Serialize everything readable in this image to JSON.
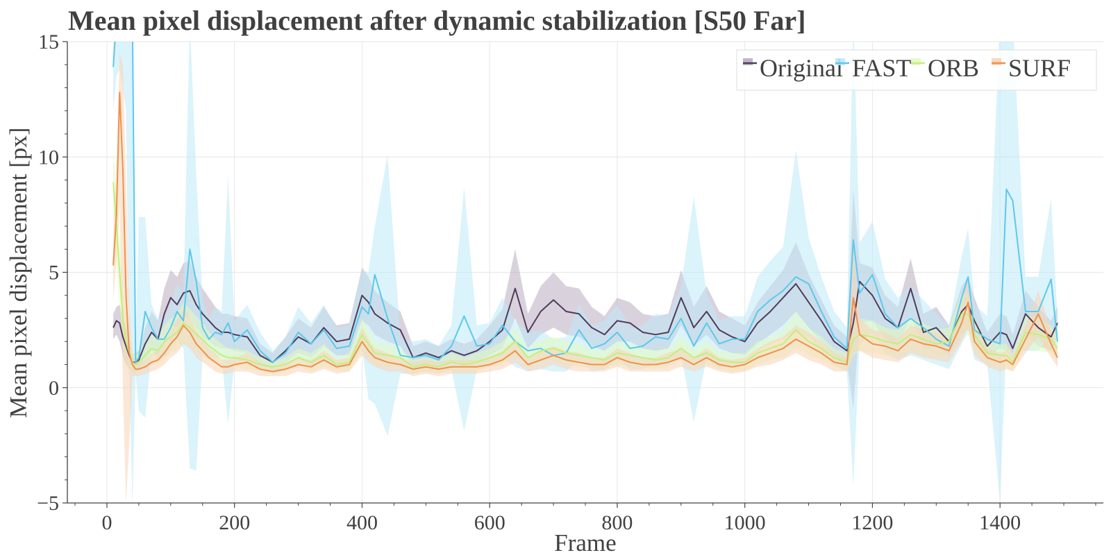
{
  "chart_data": {
    "type": "line",
    "title": "Mean pixel displacement after dynamic stabilization [S50 Far]",
    "xlabel": "Frame",
    "ylabel": "Mean pixel displacement [px]",
    "xlim": [
      -62,
      1562
    ],
    "ylim": [
      -5,
      15
    ],
    "xticks": [
      0,
      200,
      400,
      600,
      800,
      1000,
      1200,
      1400
    ],
    "yticks": [
      -5,
      0,
      5,
      10,
      15
    ],
    "x_tick_labels": [
      "0",
      "200",
      "400",
      "600",
      "800",
      "1000",
      "1200",
      "1400"
    ],
    "y_tick_labels": [
      "−5",
      "0",
      "5",
      "10",
      "15"
    ],
    "grid": true,
    "legend_position": "top-right",
    "x": [
      10,
      15,
      20,
      25,
      30,
      35,
      40,
      45,
      50,
      60,
      70,
      80,
      90,
      100,
      110,
      120,
      130,
      140,
      150,
      160,
      170,
      180,
      190,
      200,
      220,
      240,
      260,
      280,
      300,
      320,
      340,
      360,
      380,
      400,
      410,
      420,
      440,
      460,
      480,
      500,
      520,
      540,
      560,
      580,
      600,
      620,
      640,
      660,
      680,
      700,
      720,
      740,
      760,
      780,
      800,
      820,
      840,
      860,
      880,
      900,
      920,
      940,
      960,
      980,
      1000,
      1020,
      1040,
      1060,
      1080,
      1100,
      1120,
      1140,
      1160,
      1170,
      1180,
      1200,
      1220,
      1240,
      1260,
      1280,
      1300,
      1320,
      1340,
      1350,
      1360,
      1380,
      1400,
      1410,
      1420,
      1440,
      1460,
      1480,
      1490
    ],
    "series": [
      {
        "name": "Original",
        "color": "#4f3b5c",
        "band_color": "#b9adbf",
        "values": [
          2.6,
          2.9,
          2.8,
          2.2,
          1.8,
          1.4,
          1.1,
          1.1,
          1.2,
          1.9,
          2.4,
          2.1,
          3.2,
          3.9,
          3.6,
          4.1,
          4.2,
          3.6,
          3.2,
          2.9,
          2.6,
          2.4,
          2.4,
          2.3,
          2.2,
          1.4,
          1.1,
          1.6,
          2.2,
          1.9,
          2.6,
          2.0,
          2.1,
          4.0,
          3.7,
          3.2,
          2.8,
          2.5,
          1.3,
          1.5,
          1.3,
          1.6,
          1.4,
          1.6,
          2.0,
          2.5,
          4.3,
          2.4,
          3.3,
          3.8,
          3.3,
          3.2,
          2.6,
          2.3,
          2.9,
          2.8,
          2.4,
          2.3,
          2.4,
          3.9,
          2.6,
          3.3,
          2.5,
          2.2,
          2.0,
          2.8,
          3.3,
          3.9,
          4.5,
          3.7,
          2.9,
          2.0,
          1.6,
          2.8,
          4.6,
          4.0,
          3.0,
          2.6,
          4.3,
          2.4,
          2.6,
          2.0,
          3.3,
          3.6,
          2.9,
          1.8,
          2.4,
          2.3,
          1.7,
          3.2,
          2.6,
          2.2,
          2.8
        ],
        "lower": [
          2.1,
          2.3,
          2.0,
          1.4,
          1.0,
          0.8,
          0.7,
          0.7,
          0.8,
          1.2,
          1.6,
          1.4,
          2.2,
          2.7,
          2.6,
          3.0,
          3.1,
          2.6,
          2.2,
          2.0,
          1.8,
          1.7,
          1.7,
          1.6,
          1.5,
          1.0,
          0.8,
          1.1,
          1.5,
          1.3,
          1.8,
          1.4,
          1.4,
          2.9,
          2.7,
          2.3,
          2.0,
          1.8,
          0.9,
          1.0,
          0.9,
          1.1,
          1.0,
          1.1,
          1.4,
          1.7,
          3.0,
          1.7,
          2.3,
          2.6,
          2.3,
          2.2,
          1.8,
          1.6,
          2.0,
          2.0,
          1.7,
          1.6,
          1.7,
          2.7,
          1.8,
          2.3,
          1.7,
          1.5,
          1.4,
          1.9,
          2.3,
          2.7,
          3.3,
          2.6,
          2.0,
          1.4,
          1.1,
          -0.9,
          2.8,
          2.9,
          2.1,
          1.8,
          3.1,
          1.7,
          1.8,
          1.4,
          2.3,
          2.5,
          2.0,
          1.3,
          1.7,
          1.6,
          1.2,
          2.3,
          1.8,
          1.6,
          2.2
        ],
        "upper": [
          3.2,
          3.5,
          3.6,
          3.0,
          2.6,
          2.0,
          1.5,
          1.5,
          1.6,
          2.6,
          3.3,
          2.9,
          4.3,
          5.1,
          4.8,
          5.4,
          5.5,
          4.8,
          4.3,
          3.9,
          3.5,
          3.2,
          3.2,
          3.1,
          3.0,
          1.9,
          1.5,
          2.2,
          3.0,
          2.6,
          3.5,
          2.7,
          2.8,
          5.2,
          4.8,
          4.2,
          3.7,
          3.3,
          1.8,
          2.0,
          1.8,
          2.1,
          1.9,
          2.1,
          2.7,
          3.4,
          6.0,
          3.2,
          4.4,
          5.0,
          4.4,
          4.3,
          3.5,
          3.1,
          3.9,
          3.7,
          3.2,
          3.1,
          3.2,
          5.1,
          3.5,
          4.4,
          3.3,
          3.0,
          2.7,
          3.7,
          4.4,
          5.1,
          6.3,
          4.9,
          3.8,
          2.7,
          2.2,
          8.6,
          5.4,
          5.2,
          4.0,
          3.5,
          5.6,
          3.2,
          3.5,
          2.7,
          4.4,
          4.8,
          3.9,
          2.4,
          3.2,
          3.1,
          2.3,
          4.2,
          3.5,
          2.9,
          3.5
        ]
      },
      {
        "name": "FAST",
        "color": "#5bc8ec",
        "band_color": "#bde9f8",
        "values": [
          13.9,
          16,
          16,
          16,
          16,
          16,
          16,
          1.1,
          1.3,
          3.3,
          2.6,
          2.1,
          2.1,
          2.6,
          3.3,
          2.9,
          6.0,
          4.6,
          2.6,
          2.1,
          2.4,
          2.3,
          2.8,
          2.0,
          2.5,
          1.6,
          1.1,
          1.5,
          2.4,
          1.9,
          2.5,
          1.7,
          1.8,
          3.5,
          3.2,
          4.9,
          3.0,
          1.4,
          1.3,
          1.4,
          1.2,
          1.8,
          3.1,
          1.8,
          1.9,
          2.7,
          2.0,
          1.6,
          1.7,
          1.4,
          1.5,
          2.5,
          1.7,
          1.9,
          2.4,
          1.7,
          1.8,
          2.2,
          2.1,
          3.0,
          1.8,
          2.8,
          1.9,
          2.1,
          2.1,
          3.3,
          3.8,
          4.2,
          4.8,
          4.5,
          3.3,
          2.2,
          1.7,
          6.4,
          4.1,
          4.9,
          3.2,
          2.6,
          3.0,
          2.6,
          2.1,
          1.8,
          3.9,
          4.8,
          2.5,
          2.1,
          1.9,
          8.6,
          8.1,
          3.3,
          3.3,
          4.7,
          2.0
        ],
        "lower": [
          12.0,
          13.5,
          13.8,
          13.0,
          12.0,
          0.8,
          -5.2,
          0.6,
          -1.0,
          -1.3,
          1.6,
          1.2,
          1.3,
          1.6,
          2.1,
          1.7,
          -3.5,
          -3.6,
          1.4,
          1.2,
          1.3,
          1.3,
          -1.6,
          1.1,
          1.2,
          0.8,
          0.6,
          0.8,
          1.3,
          0.9,
          1.2,
          0.8,
          0.9,
          1.8,
          -0.5,
          -0.7,
          -2.1,
          0.6,
          0.6,
          0.7,
          0.6,
          0.8,
          -1.9,
          0.8,
          0.9,
          1.3,
          0.9,
          0.7,
          0.8,
          0.7,
          0.7,
          1.2,
          0.7,
          0.8,
          1.2,
          0.8,
          0.8,
          1.0,
          1.0,
          1.4,
          -1.5,
          1.3,
          0.8,
          1.0,
          1.0,
          1.6,
          1.9,
          2.1,
          2.4,
          2.2,
          1.6,
          1.0,
          0.7,
          -4.3,
          1.9,
          2.4,
          1.5,
          1.2,
          1.4,
          1.2,
          1.0,
          0.8,
          1.9,
          2.4,
          1.2,
          1.0,
          -5.0,
          2.0,
          1.6,
          1.6,
          1.6,
          2.3,
          0.9
        ],
        "upper": [
          16,
          16,
          16,
          16,
          16,
          16,
          16,
          1.6,
          7.4,
          7.4,
          3.6,
          3.0,
          3.0,
          3.6,
          4.5,
          4.1,
          16,
          9.2,
          3.8,
          3.0,
          3.5,
          3.3,
          9.2,
          2.9,
          3.6,
          2.4,
          1.6,
          2.2,
          3.5,
          2.8,
          3.6,
          2.6,
          2.7,
          5.1,
          5.0,
          7.0,
          10.1,
          2.2,
          2.0,
          2.1,
          1.8,
          2.7,
          8.7,
          2.7,
          2.8,
          3.9,
          2.9,
          2.4,
          2.5,
          2.1,
          2.2,
          3.6,
          2.7,
          2.9,
          3.6,
          2.6,
          2.7,
          3.2,
          3.1,
          4.4,
          8.3,
          4.1,
          2.9,
          3.1,
          3.1,
          4.8,
          5.5,
          6.1,
          10.3,
          6.5,
          4.8,
          3.3,
          2.6,
          16,
          6.3,
          7.2,
          4.7,
          3.9,
          4.4,
          3.8,
          3.2,
          2.7,
          5.7,
          6.9,
          3.6,
          3.1,
          16,
          16,
          16,
          4.8,
          4.8,
          8.2,
          3.1
        ]
      },
      {
        "name": "ORB",
        "color": "#c2f07a",
        "band_color": "#e2f9c0",
        "values": [
          8.9,
          7.0,
          5.0,
          3.0,
          2.0,
          1.5,
          1.1,
          1.0,
          1.1,
          1.4,
          1.7,
          1.6,
          2.0,
          2.2,
          2.4,
          2.8,
          2.6,
          2.3,
          2.1,
          1.8,
          1.6,
          1.4,
          1.3,
          1.3,
          1.2,
          1.0,
          0.9,
          1.0,
          1.3,
          1.1,
          1.4,
          1.0,
          1.1,
          2.3,
          1.9,
          1.5,
          1.4,
          1.3,
          0.9,
          1.0,
          0.9,
          1.1,
          1.0,
          1.1,
          1.3,
          1.5,
          2.0,
          1.3,
          1.6,
          1.7,
          1.5,
          1.4,
          1.3,
          1.2,
          1.5,
          1.4,
          1.3,
          1.2,
          1.3,
          1.7,
          1.3,
          1.5,
          1.2,
          1.1,
          1.1,
          1.5,
          1.7,
          1.9,
          2.5,
          2.0,
          1.7,
          1.3,
          1.1,
          2.1,
          2.3,
          2.2,
          2.0,
          1.9,
          2.3,
          2.1,
          1.9,
          2.0,
          3.2,
          3.2,
          2.3,
          1.5,
          1.4,
          1.4,
          1.1,
          2.4,
          2.3,
          2.1,
          1.7
        ],
        "lower": [
          7.5,
          5.5,
          3.6,
          1.8,
          1.0,
          0.8,
          0.6,
          0.6,
          0.7,
          0.9,
          1.1,
          1.0,
          1.3,
          1.5,
          1.6,
          1.9,
          1.8,
          1.6,
          1.4,
          1.2,
          1.1,
          0.9,
          0.9,
          0.9,
          0.8,
          0.7,
          0.6,
          0.7,
          0.9,
          0.7,
          0.9,
          0.7,
          0.7,
          1.6,
          1.3,
          1.0,
          0.9,
          0.9,
          0.6,
          0.7,
          0.6,
          0.7,
          0.7,
          0.7,
          0.9,
          1.0,
          1.4,
          0.9,
          1.1,
          1.2,
          1.0,
          0.9,
          0.9,
          0.8,
          1.0,
          0.9,
          0.9,
          0.8,
          0.9,
          1.2,
          0.9,
          1.0,
          0.8,
          0.7,
          0.7,
          1.0,
          1.2,
          1.3,
          1.7,
          1.4,
          1.2,
          0.9,
          0.7,
          1.4,
          1.6,
          1.5,
          1.4,
          1.3,
          1.6,
          1.4,
          1.3,
          1.4,
          2.3,
          2.3,
          1.6,
          1.0,
          0.9,
          0.9,
          0.7,
          1.7,
          1.6,
          1.5,
          1.2
        ],
        "upper": [
          10.3,
          8.5,
          6.5,
          4.3,
          3.0,
          2.2,
          1.6,
          1.4,
          1.5,
          1.9,
          2.3,
          2.2,
          2.7,
          3.0,
          3.2,
          3.7,
          3.4,
          3.1,
          2.8,
          2.4,
          2.1,
          1.9,
          1.7,
          1.7,
          1.6,
          1.3,
          1.2,
          1.3,
          1.7,
          1.5,
          1.9,
          1.3,
          1.5,
          3.0,
          2.5,
          2.0,
          1.9,
          1.7,
          1.2,
          1.3,
          1.2,
          1.5,
          1.3,
          1.5,
          1.7,
          2.0,
          2.6,
          1.7,
          2.1,
          2.2,
          2.0,
          1.9,
          1.7,
          1.6,
          2.0,
          1.9,
          1.7,
          1.6,
          1.7,
          2.2,
          1.7,
          2.0,
          1.6,
          1.5,
          1.5,
          2.0,
          2.2,
          2.5,
          3.3,
          2.6,
          2.2,
          1.7,
          1.5,
          2.8,
          3.0,
          2.9,
          2.6,
          2.5,
          3.0,
          2.8,
          2.5,
          2.6,
          4.1,
          4.1,
          3.0,
          2.0,
          1.9,
          1.9,
          1.5,
          3.1,
          3.0,
          2.7,
          2.2
        ]
      },
      {
        "name": "SURF",
        "color": "#f0904a",
        "band_color": "#fad3b6",
        "values": [
          5.3,
          7.5,
          12.8,
          9.5,
          4.0,
          1.5,
          1.0,
          0.8,
          0.8,
          0.9,
          1.1,
          1.2,
          1.5,
          1.9,
          2.2,
          2.7,
          2.4,
          1.9,
          1.6,
          1.3,
          1.1,
          0.9,
          0.9,
          1.0,
          1.1,
          0.8,
          0.7,
          0.8,
          1.0,
          0.9,
          1.2,
          0.9,
          1.0,
          2.0,
          1.6,
          1.3,
          1.1,
          1.0,
          0.8,
          0.9,
          0.8,
          0.9,
          0.9,
          0.9,
          1.0,
          1.2,
          1.6,
          1.0,
          1.2,
          1.4,
          1.2,
          1.1,
          1.0,
          1.0,
          1.3,
          1.1,
          1.0,
          1.0,
          1.1,
          1.3,
          1.0,
          1.3,
          1.0,
          0.9,
          1.0,
          1.3,
          1.5,
          1.7,
          2.1,
          1.8,
          1.5,
          1.1,
          1.0,
          3.9,
          2.3,
          1.9,
          1.8,
          1.6,
          2.1,
          1.9,
          1.8,
          1.6,
          2.8,
          3.7,
          2.0,
          1.3,
          1.1,
          1.2,
          1.0,
          2.1,
          3.2,
          1.9,
          1.3
        ],
        "lower": [
          3.8,
          5.5,
          8.0,
          0.0,
          -5.0,
          -2.5,
          0.5,
          0.5,
          0.5,
          0.6,
          0.7,
          0.8,
          1.0,
          1.3,
          1.5,
          1.9,
          1.7,
          1.3,
          1.1,
          0.9,
          0.7,
          0.6,
          0.6,
          0.7,
          0.7,
          0.5,
          0.5,
          0.5,
          0.7,
          0.6,
          0.8,
          0.6,
          0.7,
          1.4,
          1.1,
          0.9,
          0.7,
          0.7,
          0.5,
          0.6,
          0.5,
          0.6,
          0.6,
          0.6,
          0.7,
          0.8,
          1.1,
          0.7,
          0.8,
          1.0,
          0.8,
          0.7,
          0.7,
          0.7,
          0.9,
          0.7,
          0.7,
          0.7,
          0.7,
          0.9,
          0.7,
          0.9,
          0.7,
          0.6,
          0.7,
          0.9,
          1.0,
          1.2,
          1.5,
          1.2,
          1.0,
          0.7,
          0.7,
          1.5,
          1.6,
          1.3,
          1.2,
          1.1,
          1.5,
          1.3,
          1.2,
          1.1,
          2.0,
          2.6,
          1.4,
          0.9,
          0.7,
          0.8,
          0.7,
          1.5,
          2.2,
          1.3,
          0.9
        ],
        "upper": [
          6.8,
          9.5,
          14.5,
          14.0,
          9.0,
          3.5,
          1.5,
          1.1,
          1.1,
          1.2,
          1.5,
          1.6,
          2.0,
          2.5,
          2.9,
          3.5,
          3.1,
          2.5,
          2.1,
          1.7,
          1.5,
          1.2,
          1.2,
          1.3,
          1.5,
          1.1,
          0.9,
          1.1,
          1.3,
          1.2,
          1.6,
          1.2,
          1.3,
          2.6,
          2.1,
          1.7,
          1.5,
          1.3,
          1.1,
          1.2,
          1.1,
          1.2,
          1.2,
          1.2,
          1.3,
          1.6,
          2.1,
          1.3,
          1.6,
          1.8,
          1.6,
          1.5,
          1.3,
          1.3,
          1.7,
          1.5,
          1.3,
          1.3,
          1.5,
          1.7,
          1.3,
          1.7,
          1.3,
          1.2,
          1.3,
          1.7,
          2.0,
          2.2,
          2.7,
          2.4,
          2.0,
          1.5,
          1.3,
          6.5,
          3.0,
          2.5,
          2.4,
          2.1,
          2.7,
          2.5,
          2.4,
          2.1,
          3.6,
          4.8,
          2.6,
          1.7,
          1.5,
          1.6,
          1.3,
          2.7,
          4.2,
          2.5,
          1.7
        ]
      }
    ]
  }
}
